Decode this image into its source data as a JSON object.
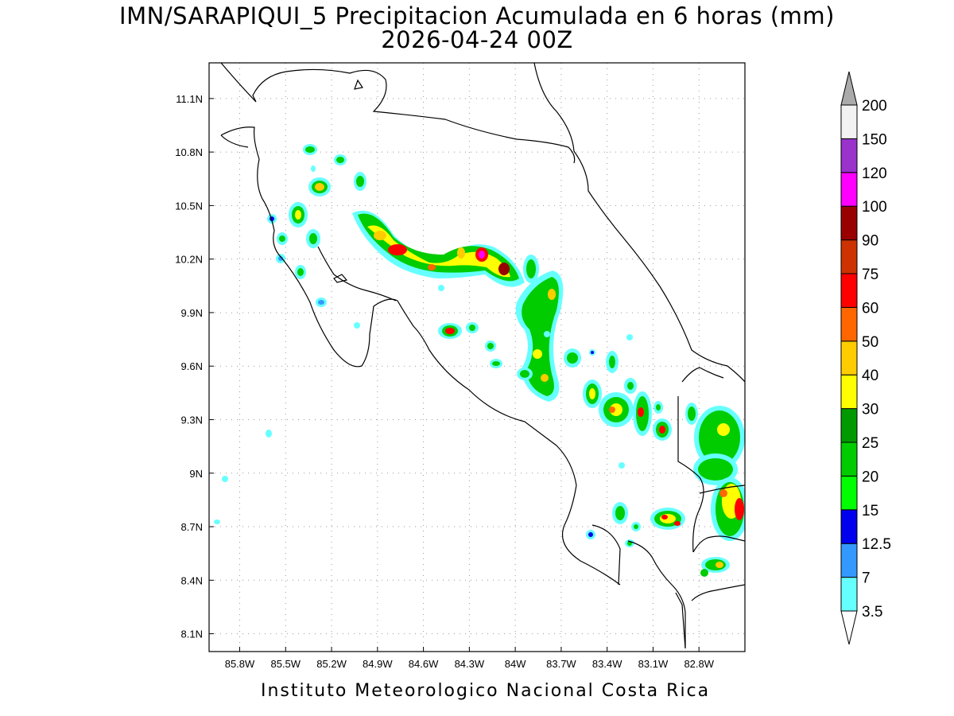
{
  "header": {
    "title": "IMN/SARAPIQUI_5 Precipitacion Acumulada en 6 horas (mm)",
    "subtitle": "2026-04-24 00Z"
  },
  "footer": {
    "credit": "Instituto Meteorologico Nacional Costa Rica"
  },
  "map": {
    "lon_ticks": [
      "85.8W",
      "85.5W",
      "85.2W",
      "84.9W",
      "84.6W",
      "84.3W",
      "84W",
      "83.7W",
      "83.4W",
      "83.1W",
      "82.8W"
    ],
    "lat_ticks": [
      "11.1N",
      "10.8N",
      "10.5N",
      "10.2N",
      "9.9N",
      "9.6N",
      "9.3N",
      "9N",
      "8.7N",
      "8.4N",
      "8.1N"
    ],
    "lon_range": [
      -86.0,
      -82.5
    ],
    "lat_range": [
      8.0,
      11.3
    ],
    "gridlines": true,
    "colors": {
      "coastline": "#000000",
      "grid": "#999999"
    }
  },
  "colorbar": {
    "labels": [
      "3.5",
      "7",
      "12.5",
      "15",
      "20",
      "25",
      "30",
      "40",
      "50",
      "60",
      "75",
      "90",
      "100",
      "120",
      "150",
      "200"
    ],
    "colors": [
      "#ffffff",
      "#66ffff",
      "#3399ff",
      "#0000ee",
      "#00ff00",
      "#00cc00",
      "#009900",
      "#ffff00",
      "#ffcc00",
      "#ff6600",
      "#ff0000",
      "#cc3300",
      "#990000",
      "#ff00ff",
      "#9933cc",
      "#f2f2f2"
    ],
    "over_color": "#aaaaaa",
    "under_color": "#ffffff"
  }
}
